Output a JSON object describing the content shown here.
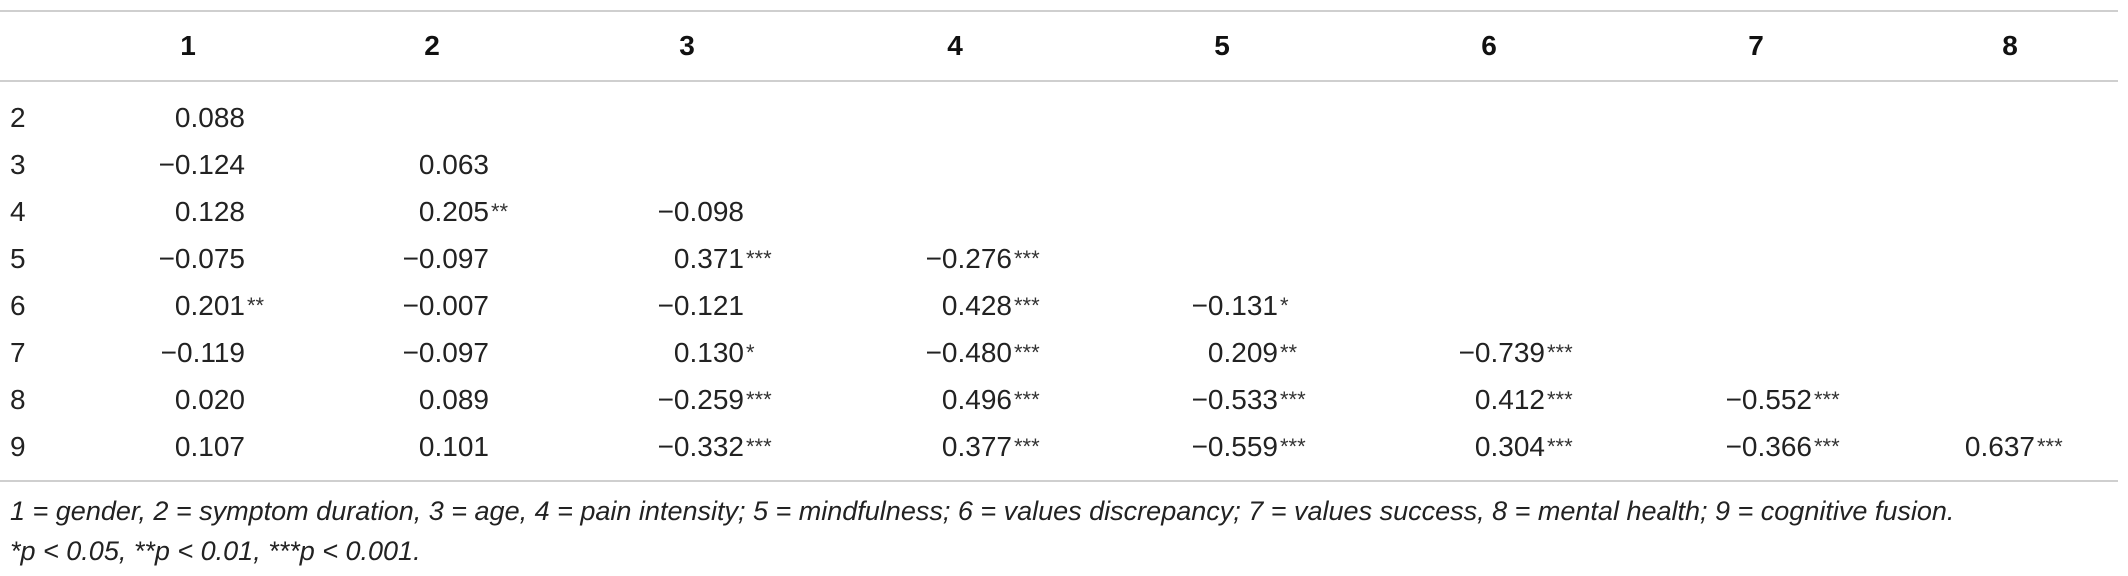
{
  "table": {
    "columns": [
      "1",
      "2",
      "3",
      "4",
      "5",
      "6",
      "7",
      "8"
    ],
    "rows": [
      {
        "label": "2",
        "cells": [
          {
            "v": "0.088",
            "s": ""
          }
        ]
      },
      {
        "label": "3",
        "cells": [
          {
            "v": "−0.124",
            "s": ""
          },
          {
            "v": "0.063",
            "s": ""
          }
        ]
      },
      {
        "label": "4",
        "cells": [
          {
            "v": "0.128",
            "s": ""
          },
          {
            "v": "0.205",
            "s": "**"
          },
          {
            "v": "−0.098",
            "s": ""
          }
        ]
      },
      {
        "label": "5",
        "cells": [
          {
            "v": "−0.075",
            "s": ""
          },
          {
            "v": "−0.097",
            "s": ""
          },
          {
            "v": "0.371",
            "s": "***"
          },
          {
            "v": "−0.276",
            "s": "***"
          }
        ]
      },
      {
        "label": "6",
        "cells": [
          {
            "v": "0.201",
            "s": "**"
          },
          {
            "v": "−0.007",
            "s": ""
          },
          {
            "v": "−0.121",
            "s": ""
          },
          {
            "v": "0.428",
            "s": "***"
          },
          {
            "v": "−0.131",
            "s": "*"
          }
        ]
      },
      {
        "label": "7",
        "cells": [
          {
            "v": "−0.119",
            "s": ""
          },
          {
            "v": "−0.097",
            "s": ""
          },
          {
            "v": "0.130",
            "s": "*"
          },
          {
            "v": "−0.480",
            "s": "***"
          },
          {
            "v": "0.209",
            "s": "**"
          },
          {
            "v": "−0.739",
            "s": "***"
          }
        ]
      },
      {
        "label": "8",
        "cells": [
          {
            "v": "0.020",
            "s": ""
          },
          {
            "v": "0.089",
            "s": ""
          },
          {
            "v": "−0.259",
            "s": "***"
          },
          {
            "v": "0.496",
            "s": "***"
          },
          {
            "v": "−0.533",
            "s": "***"
          },
          {
            "v": "0.412",
            "s": "***"
          },
          {
            "v": "−0.552",
            "s": "***"
          }
        ]
      },
      {
        "label": "9",
        "cells": [
          {
            "v": "0.107",
            "s": ""
          },
          {
            "v": "0.101",
            "s": ""
          },
          {
            "v": "−0.332",
            "s": "***"
          },
          {
            "v": "0.377",
            "s": "***"
          },
          {
            "v": "−0.559",
            "s": "***"
          },
          {
            "v": "0.304",
            "s": "***"
          },
          {
            "v": "−0.366",
            "s": "***"
          },
          {
            "v": "0.637",
            "s": "***"
          }
        ]
      }
    ]
  },
  "footnote": {
    "line1": "1 = gender, 2 = symptom duration, 3 = age, 4 = pain intensity; 5 = mindfulness; 6 = values discrepancy; 7 = values success, 8 = mental health; 9 = cognitive fusion.",
    "line2": "*p < 0.05, **p < 0.01, ***p < 0.001."
  }
}
